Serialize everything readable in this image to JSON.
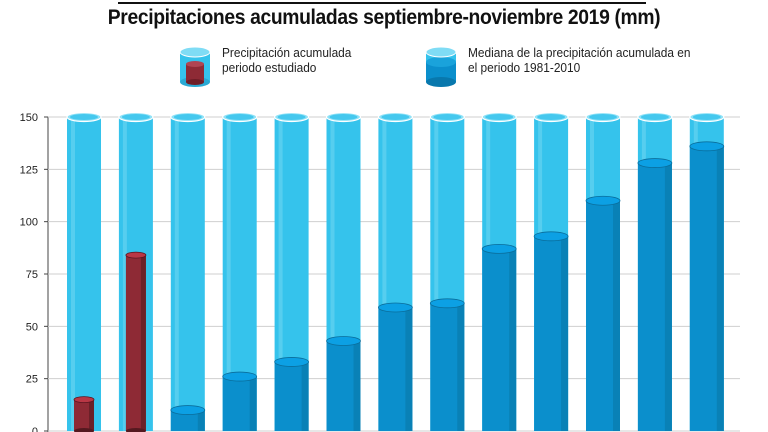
{
  "title": "Precipitaciones acumuladas septiembre-noviembre 2019 (mm)",
  "legend": {
    "studied": "Precipitación acumulada periodo estudiado",
    "median": "Mediana de la precipitación acumulada en el periodo 1981-2010"
  },
  "colors": {
    "studied": "#8e2a35",
    "median": "#0b8fcc",
    "empty": "#35c3ec",
    "gridline": "#cfcfcf"
  },
  "chart_data": {
    "type": "bar",
    "title": "Precipitaciones acumuladas septiembre-noviembre 2019 (mm)",
    "ylim": [
      0,
      150
    ],
    "yticks": [
      0,
      25,
      50,
      75,
      100,
      125,
      150
    ],
    "grid": true,
    "legend_position": "top",
    "series": [
      {
        "name": "Precipitación acumulada periodo estudiado",
        "values": [
          15,
          84,
          null,
          null,
          null,
          null,
          null,
          null,
          null,
          null,
          null,
          null,
          null
        ]
      },
      {
        "name": "Mediana de la precipitación acumulada en el periodo 1981-2010",
        "values": [
          null,
          null,
          10,
          26,
          33,
          43,
          59,
          61,
          87,
          93,
          110,
          128,
          136
        ]
      }
    ]
  }
}
